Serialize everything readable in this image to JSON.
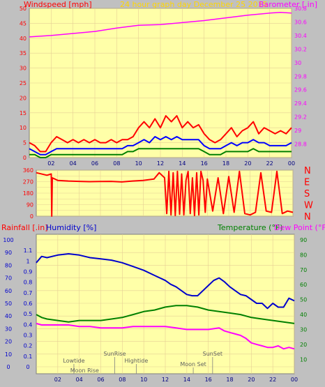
{
  "colors": {
    "background": "#c0c0c0",
    "plot_bg": "#ffffa8",
    "gust": "#ff0000",
    "speed": "#0000ff",
    "avg": "#008000",
    "barometer": "#ff00ff",
    "direction": "#ff0000",
    "humidity": "#0000cc",
    "temperature": "#008000",
    "dewpoint": "#ff00ff",
    "grid": "#e6cf94",
    "events": "#808080"
  },
  "chart_data": [
    {
      "id": "wind-baro",
      "type": "line",
      "title": "24 hour graph day   December 25 2015",
      "left_axis_label": "Windspeed [mph]",
      "right_axis_label": "Barometer [.in]",
      "x_ticks": [
        "02",
        "04",
        "06",
        "08",
        "10",
        "12",
        "14",
        "16",
        "18",
        "20",
        "22",
        "00"
      ],
      "xlim": [
        0,
        24
      ],
      "wind_ylim": [
        0,
        50
      ],
      "wind_ticks": [
        "0",
        "5",
        "10",
        "15",
        "20",
        "25",
        "30",
        "35",
        "40",
        "45",
        "50"
      ],
      "baro_ylim": [
        28.6,
        30.8
      ],
      "baro_ticks": [
        "28.8",
        "29",
        "29.2",
        "29.4",
        "29.6",
        "29.8",
        "30",
        "30.2",
        "30.4",
        "30.6",
        "30.8"
      ],
      "series": [
        {
          "key": "gust",
          "x": [
            0,
            0.5,
            1,
            1.5,
            2,
            2.5,
            3,
            3.5,
            4,
            4.5,
            5,
            5.5,
            6,
            6.5,
            7,
            7.5,
            8,
            8.5,
            9,
            9.5,
            10,
            10.5,
            11,
            11.5,
            12,
            12.5,
            13,
            13.5,
            14,
            14.5,
            15,
            15.5,
            16,
            16.5,
            17,
            17.5,
            18,
            18.5,
            19,
            19.5,
            20,
            20.5,
            21,
            21.5,
            22,
            22.5,
            23,
            23.5,
            24
          ],
          "y": [
            5,
            4,
            2,
            2,
            5,
            7,
            6,
            5,
            6,
            5,
            6,
            5,
            6,
            5,
            5,
            6,
            5,
            6,
            6,
            7,
            10,
            12,
            10,
            13,
            10,
            14,
            12,
            14,
            10,
            12,
            10,
            11,
            8,
            6,
            5,
            6,
            8,
            10,
            7,
            9,
            10,
            12,
            8,
            10,
            9,
            8,
            9,
            8,
            10
          ]
        },
        {
          "key": "speed",
          "x": [
            0,
            0.5,
            1,
            1.5,
            2,
            2.5,
            3,
            3.5,
            4,
            4.5,
            5,
            5.5,
            6,
            6.5,
            7,
            7.5,
            8,
            8.5,
            9,
            9.5,
            10,
            10.5,
            11,
            11.5,
            12,
            12.5,
            13,
            13.5,
            14,
            14.5,
            15,
            15.5,
            16,
            16.5,
            17,
            17.5,
            18,
            18.5,
            19,
            19.5,
            20,
            20.5,
            21,
            21.5,
            22,
            22.5,
            23,
            23.5,
            24
          ],
          "y": [
            3,
            2,
            1,
            1,
            2,
            3,
            3,
            3,
            3,
            3,
            3,
            3,
            3,
            3,
            3,
            3,
            3,
            3,
            4,
            4,
            5,
            6,
            5,
            7,
            6,
            7,
            6,
            7,
            6,
            6,
            6,
            6,
            4,
            3,
            3,
            3,
            4,
            5,
            4,
            5,
            5,
            6,
            5,
            5,
            4,
            4,
            4,
            4,
            5
          ]
        },
        {
          "key": "avg",
          "x": [
            0,
            0.5,
            1,
            1.5,
            2,
            2.5,
            3,
            3.5,
            4,
            4.5,
            5,
            5.5,
            6,
            6.5,
            7,
            7.5,
            8,
            8.5,
            9,
            9.5,
            10,
            10.5,
            11,
            11.5,
            12,
            12.5,
            13,
            13.5,
            14,
            14.5,
            15,
            15.5,
            16,
            16.5,
            17,
            17.5,
            18,
            18.5,
            19,
            19.5,
            20,
            20.5,
            21,
            21.5,
            22,
            22.5,
            23,
            23.5,
            24
          ],
          "y": [
            1,
            1,
            0,
            0,
            1,
            1,
            1,
            1,
            1,
            1,
            1,
            1,
            1,
            1,
            1,
            1,
            1,
            1,
            2,
            2,
            3,
            3,
            3,
            3,
            3,
            3,
            3,
            3,
            3,
            3,
            3,
            3,
            2,
            1,
            1,
            1,
            2,
            2,
            2,
            2,
            2,
            3,
            2,
            2,
            2,
            2,
            2,
            2,
            2
          ]
        },
        {
          "key": "barometer",
          "x": [
            0,
            2,
            4,
            6,
            8,
            10,
            12,
            14,
            16,
            18,
            20,
            22,
            23,
            24
          ],
          "y": [
            30.38,
            30.4,
            30.43,
            30.46,
            30.51,
            30.55,
            30.56,
            30.59,
            30.62,
            30.66,
            30.7,
            30.73,
            30.74,
            30.73
          ]
        }
      ]
    },
    {
      "id": "wind-direction",
      "type": "line",
      "x_ticks": [
        "02",
        "04",
        "06",
        "08",
        "10",
        "12",
        "14",
        "16",
        "18",
        "20",
        "22",
        "00"
      ],
      "xlim": [
        0,
        24
      ],
      "ylim": [
        0,
        360
      ],
      "y_ticks": [
        "0",
        "90",
        "180",
        "270",
        "360"
      ],
      "compass_labels": [
        "N",
        "W",
        "S",
        "E",
        "N"
      ],
      "series": [
        {
          "key": "direction",
          "x": [
            0,
            1,
            1.4,
            1.45,
            1.5,
            2,
            3,
            4,
            5,
            6,
            7,
            8,
            9,
            10,
            11,
            11.5,
            12,
            12.2,
            12.4,
            12.6,
            12.8,
            13,
            13.2,
            13.4,
            13.6,
            13.8,
            14,
            14.2,
            14.4,
            14.6,
            14.8,
            15,
            15.2,
            15.4,
            15.6,
            15.8,
            16,
            16.5,
            17,
            17.5,
            18,
            18.5,
            19,
            19.5,
            20,
            20.5,
            21,
            21.5,
            22,
            22.5,
            23,
            23.5,
            24
          ],
          "y": [
            340,
            320,
            330,
            0,
            300,
            280,
            275,
            272,
            270,
            271,
            272,
            268,
            275,
            280,
            290,
            340,
            300,
            20,
            350,
            10,
            340,
            5,
            350,
            15,
            330,
            10,
            280,
            350,
            20,
            300,
            5,
            340,
            10,
            350,
            280,
            30,
            290,
            40,
            300,
            20,
            310,
            30,
            350,
            20,
            10,
            30,
            340,
            40,
            30,
            350,
            20,
            40,
            30
          ]
        }
      ]
    },
    {
      "id": "temp-hum-rain",
      "type": "line",
      "rain_label": "Rainfall [.in]",
      "humidity_label": "Humidity [%]",
      "temperature_label": "Temperature (°F)",
      "dewpoint_label": "Dew Point (°F)",
      "x_ticks": [
        "02",
        "04",
        "06",
        "08",
        "10",
        "12",
        "14",
        "16",
        "18",
        "20",
        "22",
        "00"
      ],
      "xlim": [
        0,
        24
      ],
      "humidity_ylim": [
        0,
        100
      ],
      "humidity_ticks": [
        "0",
        "10",
        "20",
        "30",
        "40",
        "50",
        "60",
        "70",
        "80",
        "90",
        "100"
      ],
      "rain_ylim": [
        0,
        1.2
      ],
      "rain_ticks": [
        "0",
        "0.1",
        "0.2",
        "0.3",
        "0.4",
        "0.5",
        "0.6",
        "0.7",
        "0.8",
        "0.9",
        "1",
        "1.1"
      ],
      "temp_ylim": [
        5,
        90
      ],
      "temp_ticks": [
        "10",
        "20",
        "30",
        "40",
        "50",
        "60",
        "70",
        "80",
        "90"
      ],
      "series": [
        {
          "key": "humidity",
          "x": [
            0,
            0.5,
            1,
            2,
            3,
            4,
            5,
            6,
            7,
            8,
            9,
            10,
            11,
            12,
            12.5,
            13,
            13.5,
            14,
            14.5,
            15,
            15.5,
            16,
            16.5,
            17,
            17.5,
            18,
            18.5,
            19,
            19.5,
            20,
            20.5,
            21,
            21.5,
            22,
            22.5,
            23,
            23.5,
            24
          ],
          "y": [
            82,
            87,
            86,
            88,
            89,
            88,
            86,
            85,
            84,
            82,
            79,
            76,
            72,
            68,
            65,
            63,
            60,
            57,
            56,
            56,
            60,
            64,
            68,
            70,
            67,
            63,
            60,
            57,
            56,
            53,
            50,
            50,
            46,
            50,
            47,
            47,
            54,
            52
          ]
        },
        {
          "key": "temperature",
          "x": [
            0,
            0.5,
            1,
            2,
            3,
            4,
            5,
            6,
            7,
            8,
            9,
            10,
            11,
            12,
            13,
            14,
            15,
            16,
            17,
            18,
            19,
            20,
            21,
            22,
            23,
            24
          ],
          "y": [
            40,
            38,
            37,
            36,
            35,
            36,
            36,
            36,
            37,
            38,
            40,
            42,
            43,
            45,
            46,
            46,
            45,
            43,
            42,
            41,
            40,
            38,
            37,
            36,
            35,
            34
          ]
        },
        {
          "key": "dewpoint",
          "x": [
            0,
            0.5,
            1,
            2,
            3,
            4,
            5,
            6,
            7,
            8,
            9,
            10,
            11,
            12,
            13,
            14,
            15,
            16,
            17,
            17.5,
            18,
            18.5,
            19,
            19.5,
            20,
            20.5,
            21,
            21.5,
            22,
            22.5,
            23,
            23.5,
            24
          ],
          "y": [
            34,
            33,
            33,
            33,
            33,
            32,
            32,
            31,
            31,
            31,
            32,
            32,
            32,
            32,
            31,
            30,
            30,
            30,
            31,
            29,
            28,
            27,
            26,
            24,
            21,
            20,
            19,
            18,
            18,
            19,
            17,
            18,
            17
          ]
        }
      ],
      "events": [
        {
          "label": "Lowtide",
          "x": 3.5,
          "level": 1
        },
        {
          "label": "Moon Rise",
          "x": 4.5,
          "level": 3
        },
        {
          "label": "SunRise",
          "x": 7.3,
          "level": 0
        },
        {
          "label": "Hightide",
          "x": 9.3,
          "level": 1
        },
        {
          "label": "Moon Set",
          "x": 14.6,
          "level": 2
        },
        {
          "label": "SunSet",
          "x": 16.4,
          "level": 0
        }
      ]
    }
  ]
}
